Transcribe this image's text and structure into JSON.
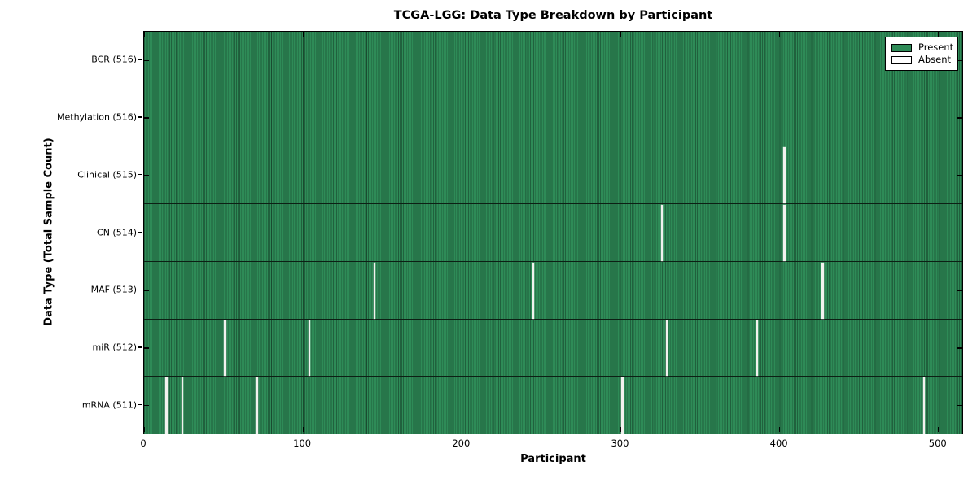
{
  "chart_data": {
    "type": "heatmap",
    "title": "TCGA-LGG: Data Type Breakdown by Participant",
    "xlabel": "Participant",
    "ylabel": "Data Type (Total Sample Count)",
    "x_ticks": [
      0,
      100,
      200,
      300,
      400,
      500
    ],
    "xlim": [
      0,
      516
    ],
    "n_participants": 516,
    "grid": false,
    "legend_position": "upper right",
    "colors": {
      "present": "#2e8b57",
      "absent": "#ffffff",
      "bar_edge": "#000000",
      "background": "#ffffff"
    },
    "legend": [
      {
        "label": "Present",
        "color": "#2e8b57"
      },
      {
        "label": "Absent",
        "color": "#ffffff"
      }
    ],
    "rows": [
      {
        "label": "BCR (516)",
        "data_type": "BCR",
        "present_count": 516,
        "absent_count": 0,
        "absent_participants": []
      },
      {
        "label": "Methylation (516)",
        "data_type": "Methylation",
        "present_count": 516,
        "absent_count": 0,
        "absent_participants": []
      },
      {
        "label": "Clinical (515)",
        "data_type": "Clinical",
        "present_count": 515,
        "absent_count": 1,
        "absent_participants": [
          403
        ]
      },
      {
        "label": "CN (514)",
        "data_type": "CN",
        "present_count": 514,
        "absent_count": 2,
        "absent_participants": [
          326,
          403
        ]
      },
      {
        "label": "MAF (513)",
        "data_type": "MAF",
        "present_count": 513,
        "absent_count": 3,
        "absent_participants": [
          145,
          245,
          427
        ]
      },
      {
        "label": "miR (512)",
        "data_type": "miR",
        "present_count": 512,
        "absent_count": 4,
        "absent_participants": [
          51,
          104,
          329,
          386
        ]
      },
      {
        "label": "mRNA (511)",
        "data_type": "mRNA",
        "present_count": 511,
        "absent_count": 5,
        "absent_participants": [
          14,
          24,
          71,
          301,
          491
        ]
      }
    ]
  }
}
